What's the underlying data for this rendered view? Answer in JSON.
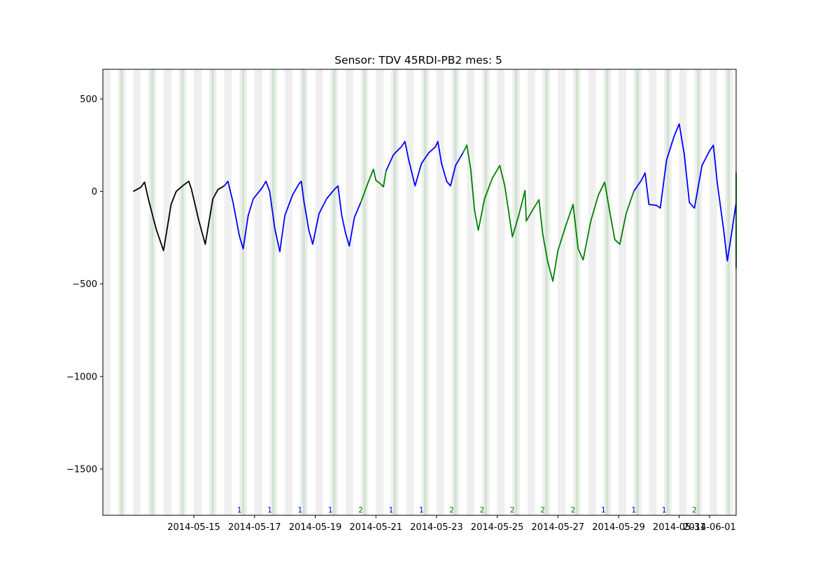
{
  "chart_data": {
    "type": "line",
    "title": "Sensor: TDV 45RDI-PB2 mes: 5",
    "xlabel": "",
    "ylabel": "",
    "x_range": [
      "2014-05-12T00:00",
      "2014-06-01T21:00"
    ],
    "ylim": [
      -1750,
      660
    ],
    "y_ticks": [
      500,
      0,
      -500,
      -1000,
      -1500
    ],
    "y_tick_labels": [
      "500",
      "0",
      "−500",
      "−1000",
      "−1500"
    ],
    "x_ticks": [
      "2014-05-15",
      "2014-05-17",
      "2014-05-19",
      "2014-05-21",
      "2014-05-23",
      "2014-05-25",
      "2014-05-27",
      "2014-05-29",
      "2014-05-31",
      "2014-06-01"
    ],
    "x_tick_labels": [
      "2014-05-15",
      "2014-05-17",
      "2014-05-19",
      "2014-05-21",
      "2014-05-23",
      "2014-05-25",
      "2014-05-27",
      "2014-05-29",
      "2014-05-31",
      "2014-06-01"
    ],
    "grid": false,
    "colors": {
      "black": "#000000",
      "blue": "#0000ff",
      "green": "#008000",
      "band_gray": "#d9d9d9",
      "band_green": "#a8d8a8"
    },
    "segments": [
      {
        "color": "black",
        "points": [
          [
            "2014-05-13T00:00",
            0
          ],
          [
            "2014-05-13T06:00",
            22
          ],
          [
            "2014-05-13T09:00",
            50
          ],
          [
            "2014-05-13T12:00",
            -40
          ],
          [
            "2014-05-13T18:00",
            -200
          ],
          [
            "2014-05-14T00:00",
            -320
          ],
          [
            "2014-05-14T06:00",
            -70
          ],
          [
            "2014-05-14T10:00",
            0
          ],
          [
            "2014-05-14T16:00",
            35
          ],
          [
            "2014-05-14T20:00",
            55
          ],
          [
            "2014-05-14T22:00",
            15
          ],
          [
            "2014-05-15T04:00",
            -160
          ],
          [
            "2014-05-15T09:00",
            -285
          ],
          [
            "2014-05-15T15:00",
            -40
          ],
          [
            "2014-05-15T19:00",
            10
          ],
          [
            "2014-05-16T00:00",
            30
          ]
        ]
      },
      {
        "color": "blue",
        "points": [
          [
            "2014-05-16T00:00",
            30
          ],
          [
            "2014-05-16T03:00",
            55
          ],
          [
            "2014-05-16T07:00",
            -60
          ],
          [
            "2014-05-16T12:00",
            -240
          ],
          [
            "2014-05-16T15:00",
            -310
          ],
          [
            "2014-05-16T19:00",
            -130
          ],
          [
            "2014-05-16T23:00",
            -40
          ],
          [
            "2014-05-17T06:00",
            20
          ],
          [
            "2014-05-17T09:00",
            55
          ],
          [
            "2014-05-17T12:00",
            0
          ],
          [
            "2014-05-17T16:00",
            -200
          ],
          [
            "2014-05-17T20:00",
            -325
          ],
          [
            "2014-05-18T00:00",
            -130
          ],
          [
            "2014-05-18T06:00",
            -20
          ],
          [
            "2014-05-18T11:00",
            40
          ],
          [
            "2014-05-18T13:00",
            55
          ],
          [
            "2014-05-18T15:00",
            -50
          ],
          [
            "2014-05-18T19:00",
            -210
          ],
          [
            "2014-05-18T22:00",
            -285
          ],
          [
            "2014-05-19T03:00",
            -120
          ],
          [
            "2014-05-19T09:00",
            -40
          ],
          [
            "2014-05-19T15:00",
            10
          ],
          [
            "2014-05-19T18:00",
            30
          ],
          [
            "2014-05-19T21:00",
            -130
          ],
          [
            "2014-05-20T00:00",
            -225
          ],
          [
            "2014-05-20T03:00",
            -295
          ],
          [
            "2014-05-20T07:00",
            -140
          ],
          [
            "2014-05-20T12:00",
            -60
          ]
        ]
      },
      {
        "color": "green",
        "points": [
          [
            "2014-05-20T12:00",
            -60
          ],
          [
            "2014-05-20T18:00",
            50
          ],
          [
            "2014-05-20T22:00",
            120
          ],
          [
            "2014-05-21T00:00",
            60
          ],
          [
            "2014-05-21T03:00",
            45
          ],
          [
            "2014-05-21T06:00",
            25
          ],
          [
            "2014-05-21T08:00",
            110
          ]
        ]
      },
      {
        "color": "blue",
        "points": [
          [
            "2014-05-21T08:00",
            110
          ],
          [
            "2014-05-21T14:00",
            200
          ],
          [
            "2014-05-21T20:00",
            240
          ],
          [
            "2014-05-21T23:00",
            270
          ],
          [
            "2014-05-22T02:00",
            170
          ],
          [
            "2014-05-22T07:00",
            30
          ],
          [
            "2014-05-22T12:00",
            150
          ],
          [
            "2014-05-22T18:00",
            210
          ],
          [
            "2014-05-22T23:00",
            240
          ],
          [
            "2014-05-23T01:00",
            270
          ],
          [
            "2014-05-23T04:00",
            150
          ],
          [
            "2014-05-23T08:00",
            55
          ],
          [
            "2014-05-23T11:00",
            30
          ],
          [
            "2014-05-23T15:00",
            140
          ],
          [
            "2014-05-23T21:00",
            210
          ]
        ]
      },
      {
        "color": "green",
        "points": [
          [
            "2014-05-23T21:00",
            210
          ],
          [
            "2014-05-24T00:00",
            250
          ],
          [
            "2014-05-24T03:00",
            120
          ],
          [
            "2014-05-24T06:00",
            -100
          ],
          [
            "2014-05-24T09:00",
            -210
          ],
          [
            "2014-05-24T14:00",
            -40
          ],
          [
            "2014-05-24T20:00",
            70
          ],
          [
            "2014-05-25T02:00",
            140
          ],
          [
            "2014-05-25T06:00",
            30
          ],
          [
            "2014-05-25T12:00",
            -245
          ],
          [
            "2014-05-25T17:00",
            -130
          ],
          [
            "2014-05-25T22:00",
            5
          ],
          [
            "2014-05-25T23:00",
            -160
          ],
          [
            "2014-05-26T04:00",
            -100
          ],
          [
            "2014-05-26T09:00",
            -45
          ],
          [
            "2014-05-26T12:00",
            -230
          ],
          [
            "2014-05-26T16:00",
            -380
          ],
          [
            "2014-05-26T20:00",
            -485
          ],
          [
            "2014-05-27T00:00",
            -320
          ],
          [
            "2014-05-27T06:00",
            -190
          ],
          [
            "2014-05-27T12:00",
            -70
          ],
          [
            "2014-05-27T16:00",
            -310
          ],
          [
            "2014-05-27T20:00",
            -370
          ],
          [
            "2014-05-28T02:00",
            -160
          ],
          [
            "2014-05-28T08:00",
            -20
          ],
          [
            "2014-05-28T13:00",
            50
          ],
          [
            "2014-05-28T17:00",
            -110
          ],
          [
            "2014-05-28T21:00",
            -260
          ],
          [
            "2014-05-29T01:00",
            -285
          ],
          [
            "2014-05-29T06:00",
            -120
          ],
          [
            "2014-05-29T12:00",
            0
          ]
        ]
      },
      {
        "color": "blue",
        "points": [
          [
            "2014-05-29T12:00",
            0
          ],
          [
            "2014-05-29T18:00",
            60
          ],
          [
            "2014-05-29T21:00",
            100
          ],
          [
            "2014-05-30T00:00",
            -70
          ],
          [
            "2014-05-30T06:00",
            -75
          ],
          [
            "2014-05-30T09:00",
            -90
          ],
          [
            "2014-05-30T14:00",
            170
          ],
          [
            "2014-05-30T20:00",
            300
          ],
          [
            "2014-05-31T00:00",
            365
          ],
          [
            "2014-05-31T04:00",
            200
          ],
          [
            "2014-05-31T08:00",
            -60
          ],
          [
            "2014-05-31T12:00",
            -90
          ],
          [
            "2014-05-31T18:00",
            140
          ],
          [
            "2014-06-01T00:00",
            220
          ],
          [
            "2014-06-01T03:00",
            250
          ],
          [
            "2014-06-01T06:00",
            50
          ],
          [
            "2014-06-01T11:00",
            -200
          ],
          [
            "2014-06-01T14:00",
            -375
          ],
          [
            "2014-06-01T18:00",
            -200
          ],
          [
            "2014-06-01T21:00",
            -60
          ]
        ]
      }
    ],
    "tail_segment": {
      "color": "green",
      "note": "rendered continuation",
      "points": [
        [
          "2014-06-01T21:00",
          -60
        ],
        [
          "2014-06-02T03:00",
          40
        ],
        [
          "2014-06-02T08:00",
          100
        ],
        [
          "2014-06-02T13:00",
          -150
        ],
        [
          "2014-06-02T18:00",
          -350
        ],
        [
          "2014-06-02T21:00",
          -415
        ],
        [
          "2014-06-03T03:00",
          -200
        ],
        [
          "2014-06-03T08:00",
          -90
        ]
      ]
    },
    "cluster_labels": [
      {
        "date": "2014-05-16T12:00",
        "label": "1",
        "color": "blue"
      },
      {
        "date": "2014-05-17T12:00",
        "label": "1",
        "color": "blue"
      },
      {
        "date": "2014-05-18T12:00",
        "label": "1",
        "color": "blue"
      },
      {
        "date": "2014-05-19T12:00",
        "label": "1",
        "color": "blue"
      },
      {
        "date": "2014-05-20T12:00",
        "label": "2",
        "color": "green"
      },
      {
        "date": "2014-05-21T12:00",
        "label": "1",
        "color": "blue"
      },
      {
        "date": "2014-05-22T12:00",
        "label": "1",
        "color": "blue"
      },
      {
        "date": "2014-05-23T12:00",
        "label": "2",
        "color": "green"
      },
      {
        "date": "2014-05-24T12:00",
        "label": "2",
        "color": "green"
      },
      {
        "date": "2014-05-25T12:00",
        "label": "2",
        "color": "green"
      },
      {
        "date": "2014-05-26T12:00",
        "label": "2",
        "color": "green"
      },
      {
        "date": "2014-05-27T12:00",
        "label": "2",
        "color": "green"
      },
      {
        "date": "2014-05-28T12:00",
        "label": "1",
        "color": "blue"
      },
      {
        "date": "2014-05-29T12:00",
        "label": "1",
        "color": "blue"
      },
      {
        "date": "2014-05-30T12:00",
        "label": "1",
        "color": "blue"
      },
      {
        "date": "2014-05-31T12:00",
        "label": "2",
        "color": "green"
      }
    ],
    "shaded_bands": {
      "gray_per_day_hours": [
        [
          0,
          6
        ],
        [
          12,
          18
        ]
      ],
      "green_per_day_hours": [
        [
          14,
          16
        ]
      ],
      "first_day": "2014-05-12",
      "days": 21
    }
  }
}
